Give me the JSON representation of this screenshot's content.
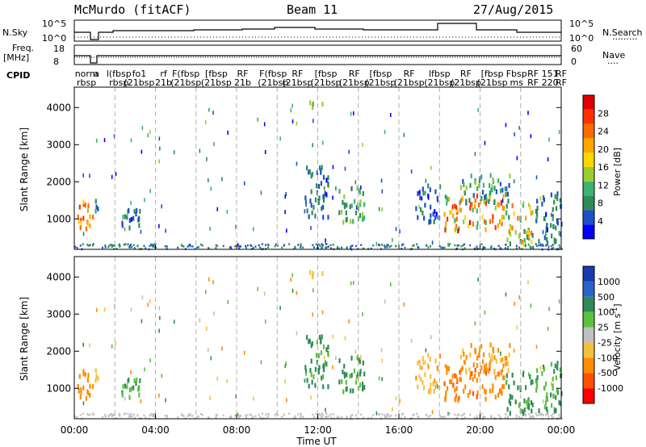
{
  "header": {
    "station": "McMurdo (fitACF)",
    "beam": "Beam 11",
    "date": "27/Aug/2015"
  },
  "strip_labels": {
    "nsky": "N.Sky",
    "nsearch": "N.Search",
    "freq": "Freq.",
    "freq_unit": "[MHz]",
    "nave": "Nave",
    "cpid": "CPID"
  },
  "strip_ticks": {
    "nsky_left": [
      "10^5",
      "10^0"
    ],
    "nsky_right": [
      "10^5",
      "10^0"
    ],
    "freq_left": [
      "18",
      "8"
    ],
    "nave_right": [
      "60",
      "0"
    ]
  },
  "cpid_labels": [
    {
      "t": 0.6,
      "top": "norm",
      "bot": "rbsp"
    },
    {
      "t": 1.1,
      "top": "a",
      "bot": ""
    },
    {
      "t": 2.2,
      "top": "l(fbsp",
      "bot": "rbsp"
    },
    {
      "t": 3.2,
      "top": "fo1",
      "bot": "(21bsp"
    },
    {
      "t": 4.4,
      "top": "rf",
      "bot": "21b"
    },
    {
      "t": 5.5,
      "top": "F(fbsp",
      "bot": "(21bsp"
    },
    {
      "t": 7.0,
      "top": "[fbsp",
      "bot": "(21bsp"
    },
    {
      "t": 8.3,
      "top": "RF",
      "bot": "21b"
    },
    {
      "t": 9.8,
      "top": "F(fbsp",
      "bot": "(21bsp"
    },
    {
      "t": 11.0,
      "top": "RF",
      "bot": "(21bsp"
    },
    {
      "t": 12.4,
      "top": "[fbsp",
      "bot": "(21bsp"
    },
    {
      "t": 13.8,
      "top": "RF",
      "bot": "(21bsp"
    },
    {
      "t": 15.1,
      "top": "[fbsp",
      "bot": "(21bsp"
    },
    {
      "t": 16.5,
      "top": "RF",
      "bot": "(21bsp"
    },
    {
      "t": 18.0,
      "top": "lfbsp",
      "bot": "(21bsp"
    },
    {
      "t": 19.3,
      "top": "RF",
      "bot": "(21bsp"
    },
    {
      "t": 20.6,
      "top": "[fbsp",
      "bot": "(21bsp"
    },
    {
      "t": 21.8,
      "top": "Fbsp",
      "bot": "ms"
    },
    {
      "t": 23.1,
      "top": "RF 151",
      "bot": "RF 220"
    },
    {
      "t": 24.0,
      "top": "RF",
      "bot": "RF"
    }
  ],
  "chart_data": {
    "type": "heatmap",
    "x_label": "Time UT",
    "x_range_hours": [
      0,
      24
    ],
    "x_ticks": [
      "00:00",
      "04:00",
      "08:00",
      "12:00",
      "16:00",
      "20:00",
      "00:00"
    ],
    "y_label": "Slant Range [km]",
    "y_range_km": [
      180,
      4550
    ],
    "y_ticks": [
      1000,
      2000,
      3000,
      4000
    ],
    "panels": [
      {
        "name": "Power",
        "colorbar_label": "Power [dB]",
        "colorbar_ticks": [
          "4",
          "8",
          "12",
          "16",
          "20",
          "24",
          "28"
        ],
        "colorbar_range": [
          0,
          32
        ],
        "colors": [
          "#0000ff",
          "#1e50c8",
          "#2e8b57",
          "#3cb371",
          "#9acd32",
          "#ffd700",
          "#ffa500",
          "#ff6a00",
          "#ff3000",
          "#e00000"
        ]
      },
      {
        "name": "Velocity",
        "colorbar_label": "Velocity [m s^-1]",
        "colorbar_ticks": [
          "1000",
          "500",
          "100",
          "25",
          "-25",
          "-100",
          "-500",
          "-1000"
        ],
        "colors": [
          "#1a3ab0",
          "#2a64c8",
          "#2e8b57",
          "#5cc040",
          "#c0c0c0",
          "#f5c040",
          "#ff8c00",
          "#ff5000",
          "#ff0000"
        ]
      }
    ],
    "echo_regions": [
      {
        "t0": 0.05,
        "t1": 0.9,
        "r0": 650,
        "r1": 1500,
        "pmin": 10,
        "pmax": 30,
        "v": -300
      },
      {
        "t0": 0.9,
        "t1": 1.15,
        "r0": 900,
        "r1": 1500,
        "pmin": 6,
        "pmax": 14,
        "v": -60
      },
      {
        "t0": 2.2,
        "t1": 3.6,
        "r0": 750,
        "r1": 1300,
        "pmin": 3,
        "pmax": 10,
        "v": 80
      },
      {
        "t0": 11.5,
        "t1": 12.4,
        "r0": 3950,
        "r1": 4150,
        "pmin": 10,
        "pmax": 18,
        "v": -60
      },
      {
        "t0": 11.3,
        "t1": 12.5,
        "r0": 1000,
        "r1": 2400,
        "pmin": 3,
        "pmax": 9,
        "v": 150
      },
      {
        "t0": 13.0,
        "t1": 14.3,
        "r0": 900,
        "r1": 1900,
        "pmin": 6,
        "pmax": 16,
        "v": 120
      },
      {
        "t0": 16.8,
        "t1": 18.0,
        "r0": 900,
        "r1": 1900,
        "pmin": 2,
        "pmax": 8,
        "v": -80
      },
      {
        "t0": 18.2,
        "t1": 21.2,
        "r0": 650,
        "r1": 1650,
        "pmin": 10,
        "pmax": 30,
        "v": -350
      },
      {
        "t0": 19.0,
        "t1": 21.5,
        "r0": 1400,
        "r1": 2200,
        "pmin": 4,
        "pmax": 14,
        "v": -120
      },
      {
        "t0": 21.2,
        "t1": 22.6,
        "r0": 300,
        "r1": 1400,
        "pmin": 8,
        "pmax": 24,
        "v": 200
      },
      {
        "t0": 22.6,
        "t1": 24.0,
        "r0": 350,
        "r1": 1700,
        "pmin": 3,
        "pmax": 10,
        "v": 100
      }
    ]
  }
}
